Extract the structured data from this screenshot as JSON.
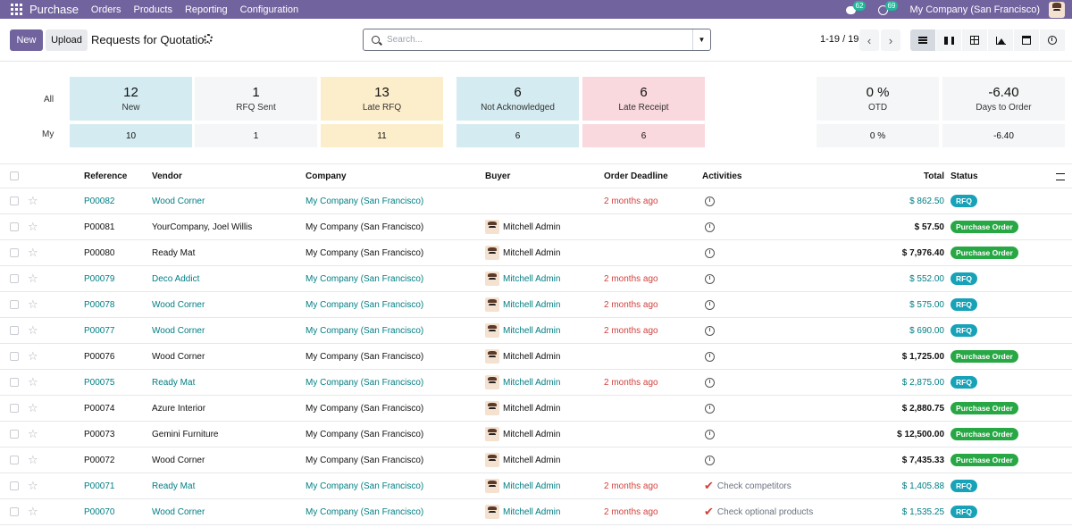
{
  "navbar": {
    "app_name": "Purchase",
    "menus": [
      "Orders",
      "Products",
      "Reporting",
      "Configuration"
    ],
    "messages_count": "62",
    "activities_count": "69",
    "company": "My Company (San Francisco)"
  },
  "control_panel": {
    "new_label": "New",
    "upload_label": "Upload",
    "title": "Requests for Quotation",
    "search_placeholder": "Search...",
    "pager": "1-19 / 19"
  },
  "dashboard": {
    "row_all_label": "All",
    "row_my_label": "My",
    "tiles": [
      {
        "all": "12",
        "label": "New",
        "my": "10",
        "color": "#d4ecf1"
      },
      {
        "all": "1",
        "label": "RFQ Sent",
        "my": "1",
        "color": "#f5f6f7"
      },
      {
        "all": "13",
        "label": "Late RFQ",
        "my": "11",
        "color": "#fdeecb"
      },
      {
        "all": "6",
        "label": "Not Acknowledged",
        "my": "6",
        "color": "#d4ecf1"
      },
      {
        "all": "6",
        "label": "Late Receipt",
        "my": "6",
        "color": "#f9d8de"
      },
      {
        "all": "0 %",
        "label": "OTD",
        "my": "0 %",
        "color": "#f5f6f7"
      },
      {
        "all": "-6.40",
        "label": "Days to Order",
        "my": "-6.40",
        "color": "#f5f6f7"
      }
    ]
  },
  "table": {
    "headers": {
      "reference": "Reference",
      "vendor": "Vendor",
      "company": "Company",
      "buyer": "Buyer",
      "deadline": "Order Deadline",
      "activities": "Activities",
      "total": "Total",
      "status": "Status"
    },
    "rows": [
      {
        "ref": "P00082",
        "vendor": "Wood Corner",
        "company": "My Company (San Francisco)",
        "buyer": "",
        "deadline": "2 months ago",
        "activity": "",
        "total": "$ 862.50",
        "status": "RFQ"
      },
      {
        "ref": "P00081",
        "vendor": "YourCompany, Joel Willis",
        "company": "My Company (San Francisco)",
        "buyer": "Mitchell Admin",
        "deadline": "",
        "activity": "",
        "total": "$ 57.50",
        "status": "Purchase Order"
      },
      {
        "ref": "P00080",
        "vendor": "Ready Mat",
        "company": "My Company (San Francisco)",
        "buyer": "Mitchell Admin",
        "deadline": "",
        "activity": "",
        "total": "$ 7,976.40",
        "status": "Purchase Order"
      },
      {
        "ref": "P00079",
        "vendor": "Deco Addict",
        "company": "My Company (San Francisco)",
        "buyer": "Mitchell Admin",
        "deadline": "2 months ago",
        "activity": "",
        "total": "$ 552.00",
        "status": "RFQ"
      },
      {
        "ref": "P00078",
        "vendor": "Wood Corner",
        "company": "My Company (San Francisco)",
        "buyer": "Mitchell Admin",
        "deadline": "2 months ago",
        "activity": "",
        "total": "$ 575.00",
        "status": "RFQ"
      },
      {
        "ref": "P00077",
        "vendor": "Wood Corner",
        "company": "My Company (San Francisco)",
        "buyer": "Mitchell Admin",
        "deadline": "2 months ago",
        "activity": "",
        "total": "$ 690.00",
        "status": "RFQ"
      },
      {
        "ref": "P00076",
        "vendor": "Wood Corner",
        "company": "My Company (San Francisco)",
        "buyer": "Mitchell Admin",
        "deadline": "",
        "activity": "",
        "total": "$ 1,725.00",
        "status": "Purchase Order"
      },
      {
        "ref": "P00075",
        "vendor": "Ready Mat",
        "company": "My Company (San Francisco)",
        "buyer": "Mitchell Admin",
        "deadline": "2 months ago",
        "activity": "",
        "total": "$ 2,875.00",
        "status": "RFQ"
      },
      {
        "ref": "P00074",
        "vendor": "Azure Interior",
        "company": "My Company (San Francisco)",
        "buyer": "Mitchell Admin",
        "deadline": "",
        "activity": "",
        "total": "$ 2,880.75",
        "status": "Purchase Order"
      },
      {
        "ref": "P00073",
        "vendor": "Gemini Furniture",
        "company": "My Company (San Francisco)",
        "buyer": "Mitchell Admin",
        "deadline": "",
        "activity": "",
        "total": "$ 12,500.00",
        "status": "Purchase Order"
      },
      {
        "ref": "P00072",
        "vendor": "Wood Corner",
        "company": "My Company (San Francisco)",
        "buyer": "Mitchell Admin",
        "deadline": "",
        "activity": "",
        "total": "$ 7,435.33",
        "status": "Purchase Order"
      },
      {
        "ref": "P00071",
        "vendor": "Ready Mat",
        "company": "My Company (San Francisco)",
        "buyer": "Mitchell Admin",
        "deadline": "2 months ago",
        "activity": "Check competitors",
        "total": "$ 1,405.88",
        "status": "RFQ"
      },
      {
        "ref": "P00070",
        "vendor": "Wood Corner",
        "company": "My Company (San Francisco)",
        "buyer": "Mitchell Admin",
        "deadline": "2 months ago",
        "activity": "Check optional products",
        "total": "$ 1,535.25",
        "status": "RFQ"
      }
    ]
  },
  "colors": {
    "brand": "#71639e",
    "link": "#017e84",
    "late": "#d23f3a",
    "rfq_badge": "#17a2b8",
    "po_badge": "#28a745"
  }
}
